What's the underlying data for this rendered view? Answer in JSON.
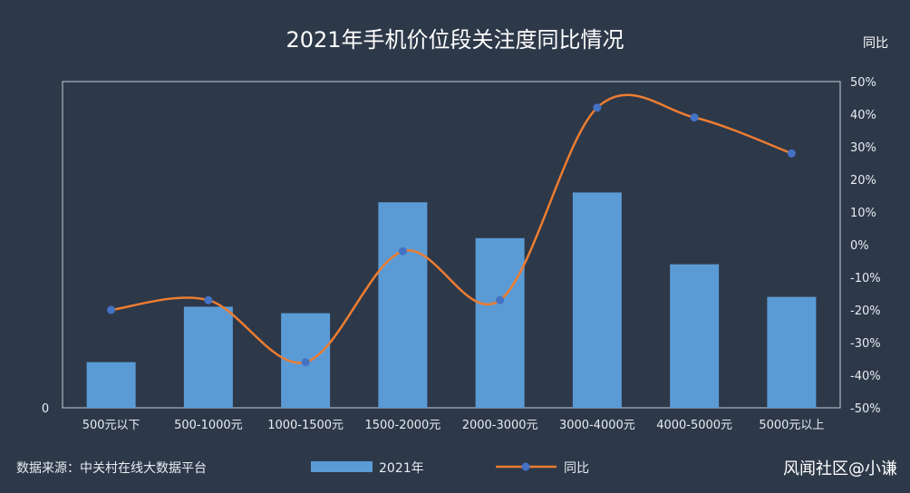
{
  "chart_data": {
    "type": "bar",
    "title": "2021年手机价位段关注度同比情况",
    "categories": [
      "500元以下",
      "500-1000元",
      "1000-1500元",
      "1500-2000元",
      "2000-3000元",
      "3000-4000元",
      "4000-5000元",
      "5000元以上"
    ],
    "left_axis": {
      "tick_labels": [
        "0"
      ]
    },
    "right_axis": {
      "label": "同比",
      "ticks": [
        50,
        40,
        30,
        20,
        10,
        0,
        -10,
        -20,
        -30,
        -40,
        -50
      ],
      "tick_labels": [
        "50%",
        "40%",
        "30%",
        "20%",
        "10%",
        "0%",
        "-10%",
        "-20%",
        "-30%",
        "-40%",
        "-50%"
      ],
      "ylim": [
        -50,
        50
      ]
    },
    "series": [
      {
        "name": "2021年",
        "type": "bar",
        "values": [
          14,
          31,
          29,
          63,
          52,
          66,
          44,
          34
        ],
        "ylim": [
          0,
          100
        ]
      },
      {
        "name": "同比",
        "type": "line",
        "smooth": true,
        "values": [
          -20,
          -17,
          -36,
          -2,
          -17,
          42,
          39,
          28
        ]
      }
    ],
    "legend": {
      "placement": "bottom",
      "items": [
        {
          "label": "2021年",
          "kind": "bar"
        },
        {
          "label": "同比",
          "kind": "line"
        }
      ]
    },
    "source_note": "数据来源：中关村在线大数据平台",
    "watermark": "风闻社区@小谦",
    "colors": {
      "background": "#2d3849",
      "plot_border": "#c9ced6",
      "bar": "#5b9bd5",
      "line": "#ed7d31",
      "marker": "#4472c4",
      "text": "#ffffff"
    },
    "grid": false
  }
}
